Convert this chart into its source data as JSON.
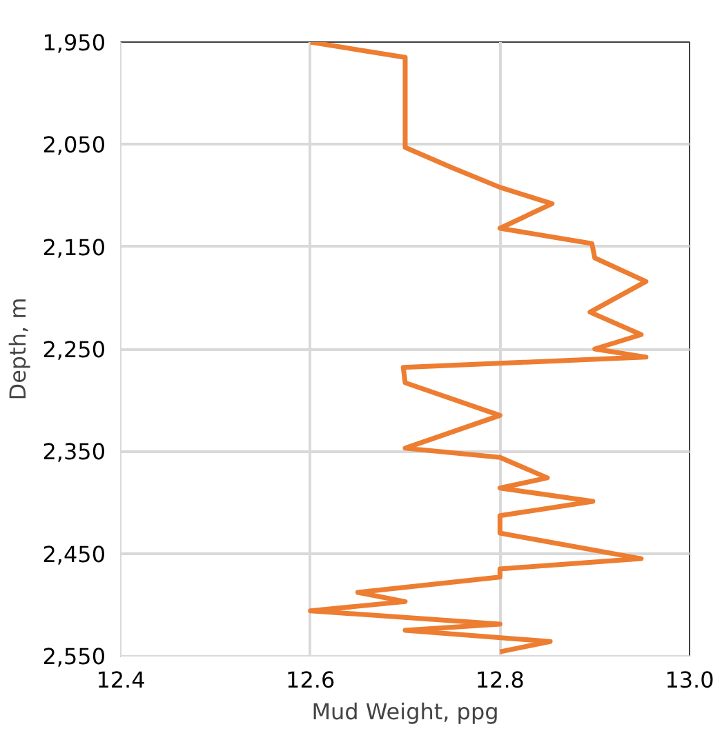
{
  "chart_data": {
    "type": "line",
    "xlabel": "Mud Weight, ppg",
    "ylabel": "Depth, m",
    "xlim": [
      12.4,
      13.0
    ],
    "xticks": [
      {
        "value": 12.4,
        "label": "12.4"
      },
      {
        "value": 12.6,
        "label": "12.6"
      },
      {
        "value": 12.8,
        "label": "12.8"
      },
      {
        "value": 13.0,
        "label": "13.0"
      }
    ],
    "ylim": [
      2550,
      1950
    ],
    "yticks": [
      {
        "value": 1950,
        "label": "1,950"
      },
      {
        "value": 2050,
        "label": "2,050"
      },
      {
        "value": 2150,
        "label": "2,150"
      },
      {
        "value": 2250,
        "label": "2,250"
      },
      {
        "value": 2350,
        "label": "2,350"
      },
      {
        "value": 2450,
        "label": "2,450"
      },
      {
        "value": 2550,
        "label": "2,550"
      }
    ],
    "grid": true,
    "marker": "none",
    "line_style": "solid",
    "series": [
      {
        "color": "#ed7d31",
        "x": [
          12.6,
          12.7,
          12.7,
          12.75,
          12.8,
          12.855,
          12.8,
          12.897,
          12.9,
          12.954,
          12.895,
          12.949,
          12.9,
          12.954,
          12.698,
          12.7,
          12.8,
          12.7,
          12.8,
          12.85,
          12.8,
          12.898,
          12.8,
          12.8,
          12.949,
          12.8,
          12.8,
          12.65,
          12.7,
          12.6,
          12.8,
          12.7,
          12.853,
          12.8
        ],
        "values": [
          1950,
          1965,
          2053,
          2073,
          2092,
          2108,
          2132,
          2147,
          2161,
          2184,
          2214,
          2236,
          2250,
          2258,
          2268,
          2283,
          2315,
          2347,
          2356,
          2376,
          2386,
          2399,
          2413,
          2430,
          2455,
          2465,
          2473,
          2488,
          2497,
          2506,
          2519,
          2525,
          2536,
          2546
        ]
      }
    ]
  }
}
